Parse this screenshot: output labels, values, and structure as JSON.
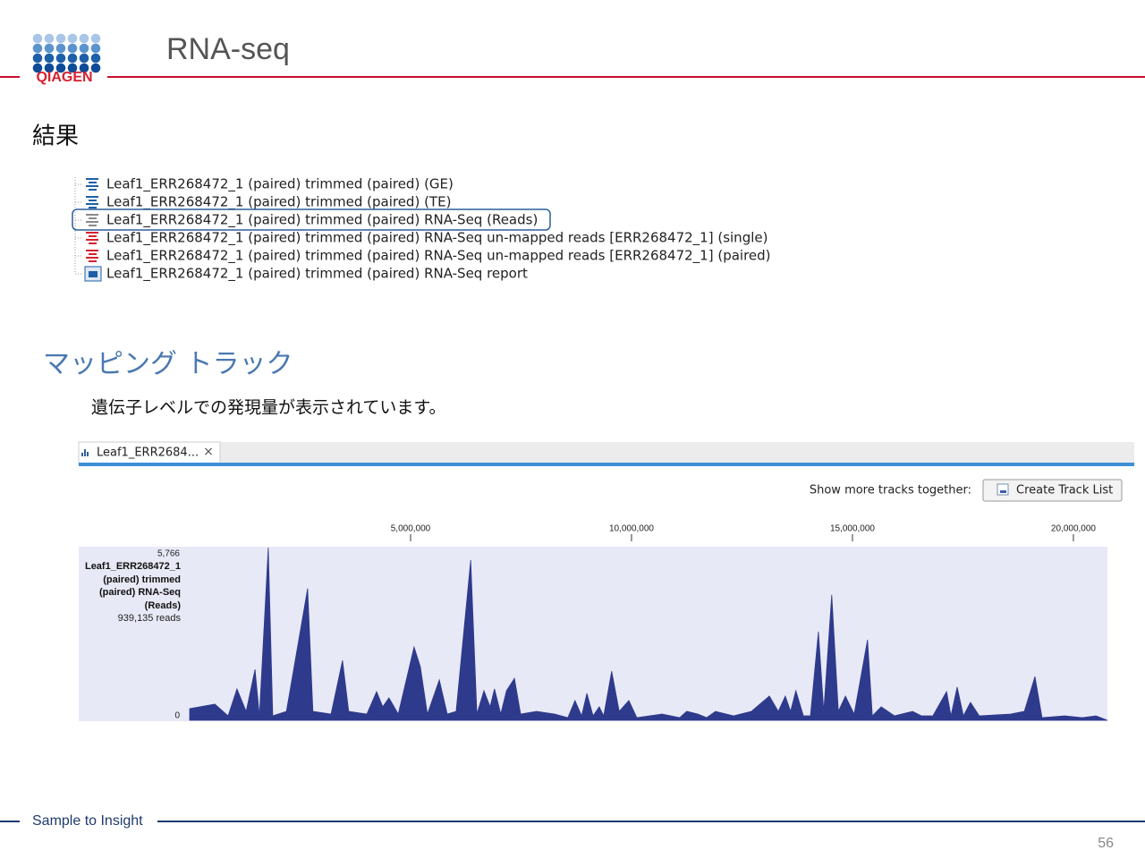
{
  "header": {
    "logo": "QIAGEN",
    "title": "RNA-seq"
  },
  "results": {
    "heading": "結果",
    "items": [
      "Leaf1_ERR268472_1 (paired) trimmed (paired) (GE)",
      "Leaf1_ERR268472_1 (paired) trimmed (paired) (TE)",
      "Leaf1_ERR268472_1 (paired) trimmed (paired) RNA-Seq (Reads)",
      "Leaf1_ERR268472_1 (paired) trimmed (paired) RNA-Seq un-mapped reads [ERR268472_1] (single)",
      "Leaf1_ERR268472_1 (paired) trimmed (paired) RNA-Seq un-mapped reads [ERR268472_1] (paired)",
      "Leaf1_ERR268472_1 (paired) trimmed (paired) RNA-Seq report"
    ]
  },
  "mapping": {
    "heading": "マッピング トラック",
    "description": "遺伝子レベルでの発現量が表示されています。"
  },
  "viewer": {
    "tab": "Leaf1_ERR2684...",
    "close": "×",
    "prompt": "Show more tracks together:",
    "button": "Create Track List"
  },
  "chart_data": {
    "type": "area",
    "track_label": "Leaf1_ERR268472_1 (paired) trimmed (paired) RNA-Seq (Reads)",
    "reads": "939,135 reads",
    "color": "#2e3a8c",
    "x": [
      0,
      570000,
      870000,
      1070000,
      1280000,
      1480000,
      1580000,
      1780000,
      1880000,
      2190000,
      2670000,
      2790000,
      3200000,
      3460000,
      3600000,
      4010000,
      4230000,
      4370000,
      4510000,
      4720000,
      5080000,
      5220000,
      5380000,
      5650000,
      5830000,
      6030000,
      6360000,
      6500000,
      6660000,
      6800000,
      6900000,
      7040000,
      7170000,
      7350000,
      7490000,
      7850000,
      8260000,
      8560000,
      8720000,
      8870000,
      8990000,
      9130000,
      9270000,
      9370000,
      9550000,
      9720000,
      9940000,
      10120000,
      10690000,
      11090000,
      11250000,
      11500000,
      11700000,
      11900000,
      12310000,
      12710000,
      13120000,
      13320000,
      13480000,
      13600000,
      13720000,
      13890000,
      14050000,
      14230000,
      14350000,
      14530000,
      14680000,
      14840000,
      15040000,
      15340000,
      15450000,
      15650000,
      15950000,
      16360000,
      16560000,
      16820000,
      17130000,
      17230000,
      17370000,
      17510000,
      17670000,
      17870000,
      18580000,
      18890000,
      19130000,
      19290000,
      19800000,
      20200000,
      20510000,
      20770000
    ],
    "values": [
      390,
      540,
      150,
      1050,
      300,
      1700,
      150,
      5766,
      150,
      300,
      4400,
      300,
      210,
      2000,
      300,
      210,
      960,
      450,
      750,
      210,
      2450,
      1790,
      210,
      1350,
      210,
      300,
      5350,
      210,
      990,
      450,
      1050,
      210,
      990,
      1400,
      210,
      300,
      210,
      90,
      660,
      150,
      900,
      150,
      450,
      150,
      1640,
      300,
      660,
      90,
      210,
      90,
      300,
      210,
      90,
      300,
      150,
      300,
      810,
      300,
      810,
      300,
      990,
      150,
      150,
      2960,
      300,
      4190,
      300,
      810,
      210,
      2690,
      150,
      450,
      150,
      300,
      150,
      150,
      960,
      150,
      1110,
      150,
      600,
      150,
      210,
      300,
      1460,
      90,
      150,
      90,
      150,
      0
    ],
    "xlim": [
      0,
      20770000
    ],
    "ylim": [
      0,
      5766
    ],
    "xticks": [
      {
        "value": 5000000,
        "label": "5,000,000"
      },
      {
        "value": 10000000,
        "label": "10,000,000"
      },
      {
        "value": 15000000,
        "label": "15,000,000"
      },
      {
        "value": 20000000,
        "label": "20,000,000"
      }
    ],
    "yticks": [
      0,
      {
        "value": 5766,
        "label": "5,766"
      }
    ]
  },
  "footer": {
    "tagline": "Sample to Insight",
    "page": "56"
  }
}
